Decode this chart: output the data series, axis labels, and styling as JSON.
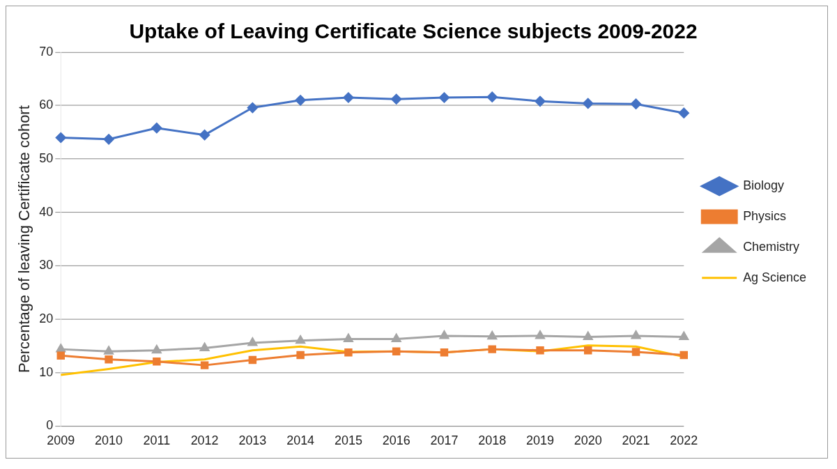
{
  "chart_data": {
    "type": "line",
    "title": "Uptake of Leaving Certificate Science subjects 2009-2022",
    "ylabel": "Percentage of leaving Certificate cohort",
    "categories": [
      "2009",
      "2010",
      "2011",
      "2012",
      "2013",
      "2014",
      "2015",
      "2016",
      "2017",
      "2018",
      "2019",
      "2020",
      "2021",
      "2022"
    ],
    "series": [
      {
        "name": "Biology",
        "color": "#4472c4",
        "marker": "diamond",
        "values": [
          54.0,
          53.7,
          55.8,
          54.5,
          59.6,
          61.0,
          61.5,
          61.2,
          61.5,
          61.6,
          60.8,
          60.4,
          60.3,
          58.6
        ]
      },
      {
        "name": "Physics",
        "color": "#ed7d31",
        "marker": "square",
        "values": [
          13.2,
          12.5,
          12.1,
          11.4,
          12.4,
          13.3,
          13.8,
          14.0,
          13.8,
          14.4,
          14.2,
          14.2,
          13.9,
          13.3
        ]
      },
      {
        "name": "Chemistry",
        "color": "#a5a5a5",
        "marker": "triangle",
        "values": [
          14.4,
          14.0,
          14.2,
          14.6,
          15.6,
          16.0,
          16.3,
          16.3,
          16.9,
          16.8,
          16.9,
          16.7,
          16.9,
          16.7
        ]
      },
      {
        "name": "Ag Science",
        "color": "#ffc000",
        "marker": "none",
        "values": [
          9.6,
          10.7,
          12.0,
          12.5,
          14.2,
          14.9,
          13.9,
          14.0,
          13.8,
          14.4,
          14.0,
          15.1,
          14.9,
          13.0
        ]
      }
    ],
    "ylim": [
      0,
      70
    ],
    "yticks": [
      0,
      10,
      20,
      30,
      40,
      50,
      60,
      70
    ],
    "grid": "y",
    "legend": "right"
  }
}
